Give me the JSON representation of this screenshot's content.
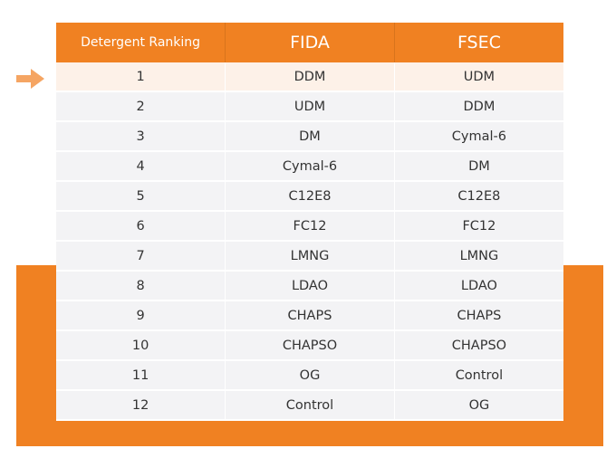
{
  "table": {
    "headers": [
      "Detergent Ranking",
      "FIDA",
      "FSEC"
    ],
    "highlighted_row_index": 0,
    "rows": [
      {
        "rank": "1",
        "fida": "DDM",
        "fsec": "UDM"
      },
      {
        "rank": "2",
        "fida": "UDM",
        "fsec": "DDM"
      },
      {
        "rank": "3",
        "fida": "DM",
        "fsec": "Cymal-6"
      },
      {
        "rank": "4",
        "fida": "Cymal-6",
        "fsec": "DM"
      },
      {
        "rank": "5",
        "fida": "C12E8",
        "fsec": "C12E8"
      },
      {
        "rank": "6",
        "fida": "FC12",
        "fsec": "FC12"
      },
      {
        "rank": "7",
        "fida": "LMNG",
        "fsec": "LMNG"
      },
      {
        "rank": "8",
        "fida": "LDAO",
        "fsec": "LDAO"
      },
      {
        "rank": "9",
        "fida": "CHAPS",
        "fsec": "CHAPS"
      },
      {
        "rank": "10",
        "fida": "CHAPSO",
        "fsec": "CHAPSO"
      },
      {
        "rank": "11",
        "fida": "OG",
        "fsec": "Control"
      },
      {
        "rank": "12",
        "fida": "Control",
        "fsec": "OG"
      }
    ]
  },
  "colors": {
    "accent": "#f08122",
    "highlight_row": "#fdf1e8",
    "row_background": "#f3f3f5",
    "text": "#333333"
  },
  "icons": {
    "pointer": "arrow-right-icon"
  }
}
